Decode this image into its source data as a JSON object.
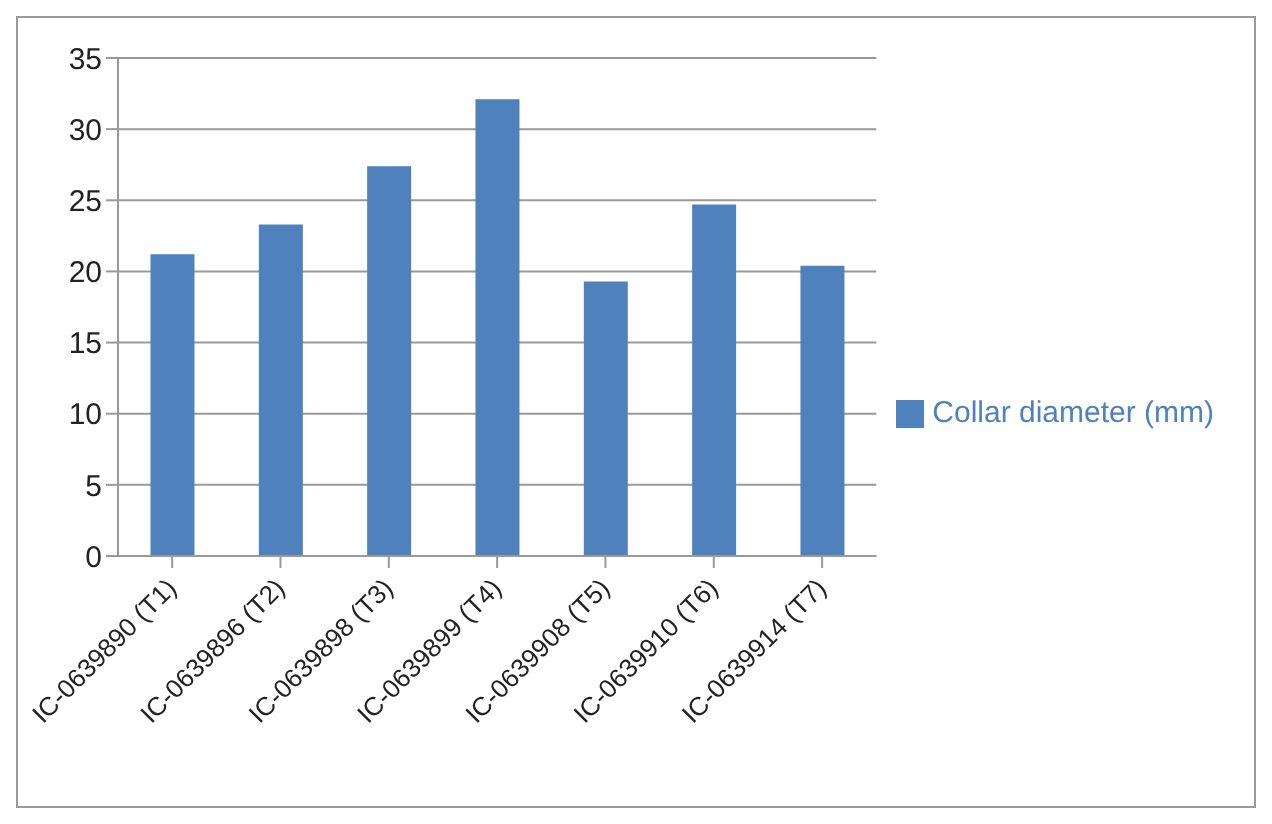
{
  "chart_data": {
    "type": "bar",
    "categories": [
      "IC-0639890 (T1)",
      "IC-0639896 (T2)",
      "IC-0639898 (T3)",
      "IC-0639899 (T4)",
      "IC-0639908 (T5)",
      "IC-0639910 (T6)",
      "IC-0639914 (T7)"
    ],
    "series": [
      {
        "name": "Collar diameter (mm)",
        "color": "#4f81bd",
        "values": [
          21.2,
          23.3,
          27.4,
          32.1,
          19.3,
          24.7,
          20.4
        ]
      }
    ],
    "ylim": [
      0,
      35
    ],
    "yticks": [
      0,
      5,
      10,
      15,
      20,
      25,
      30,
      35
    ],
    "grid": "y",
    "legend": "right"
  }
}
